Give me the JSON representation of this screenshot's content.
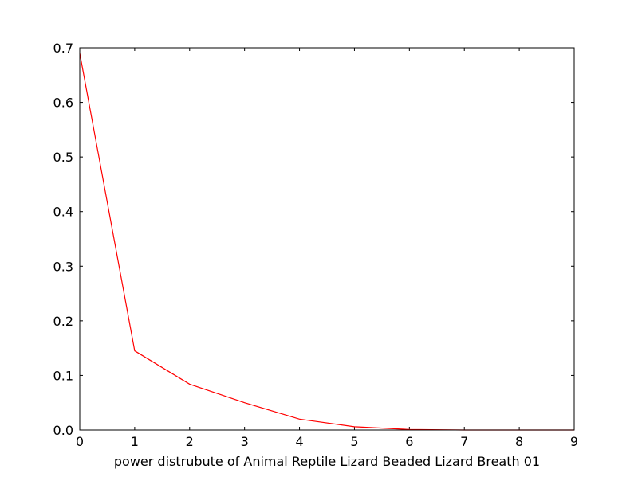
{
  "chart_data": {
    "type": "line",
    "title": "",
    "xlabel": "power distrubute of Animal Reptile Lizard Beaded Lizard Breath 01",
    "ylabel": "",
    "xlim": [
      0,
      9
    ],
    "ylim": [
      0,
      0.7
    ],
    "grid": false,
    "x_ticks": [
      "0",
      "1",
      "2",
      "3",
      "4",
      "5",
      "6",
      "7",
      "8",
      "9"
    ],
    "y_ticks": [
      "0.0",
      "0.1",
      "0.2",
      "0.3",
      "0.4",
      "0.5",
      "0.6",
      "0.7"
    ],
    "series": [
      {
        "color": "#ff0000",
        "x": [
          0,
          1,
          2,
          3,
          4,
          5,
          6,
          7,
          8,
          9
        ],
        "y": [
          0.69,
          0.145,
          0.084,
          0.05,
          0.02,
          0.006,
          0.001,
          0.0,
          0.0,
          0.0
        ]
      }
    ]
  }
}
